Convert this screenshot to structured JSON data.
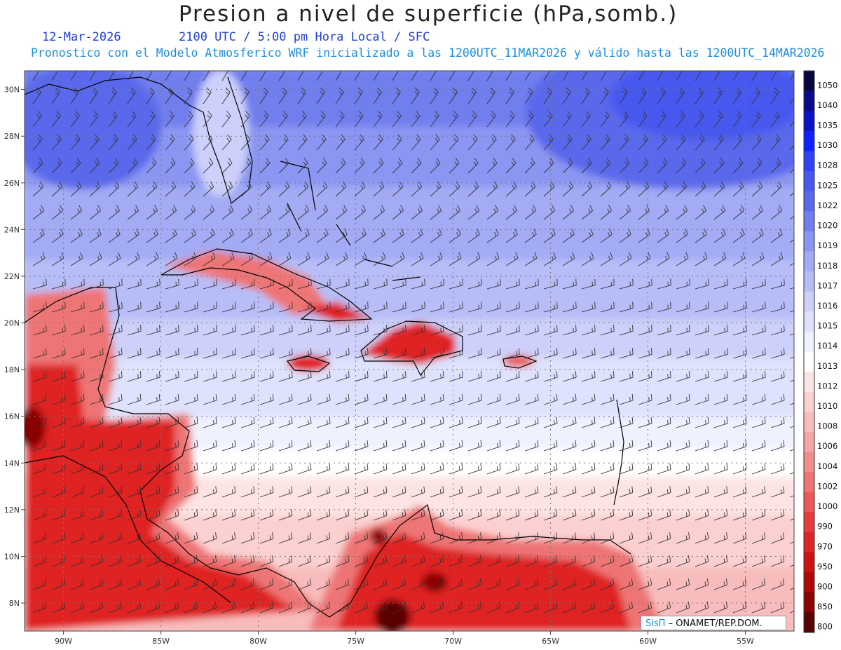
{
  "header": {
    "title": "Presion a nivel de superficie (hPa,somb.)",
    "date": "12-Mar-2026",
    "time": "2100 UTC / 5:00 pm Hora Local / SFC",
    "description": "Pronostico con el Modelo Atmosferico WRF inicializado a las 1200UTC_11MAR2026 y válido hasta las  1200UTC_14MAR2026"
  },
  "map": {
    "lon_range": [
      -92,
      -52.5
    ],
    "lat_range": [
      6.8,
      30.8
    ],
    "lon_ticks": [
      {
        "value": -90,
        "label": "90W"
      },
      {
        "value": -85,
        "label": "85W"
      },
      {
        "value": -80,
        "label": "80W"
      },
      {
        "value": -75,
        "label": "75W"
      },
      {
        "value": -70,
        "label": "70W"
      },
      {
        "value": -65,
        "label": "65W"
      },
      {
        "value": -60,
        "label": "60W"
      },
      {
        "value": -55,
        "label": "55W"
      }
    ],
    "lat_ticks": [
      {
        "value": 8,
        "label": "8N"
      },
      {
        "value": 10,
        "label": "10N"
      },
      {
        "value": 12,
        "label": "12N"
      },
      {
        "value": 14,
        "label": "14N"
      },
      {
        "value": 16,
        "label": "16N"
      },
      {
        "value": 18,
        "label": "18N"
      },
      {
        "value": 20,
        "label": "20N"
      },
      {
        "value": 22,
        "label": "22N"
      },
      {
        "value": 24,
        "label": "24N"
      },
      {
        "value": 26,
        "label": "26N"
      },
      {
        "value": 28,
        "label": "28N"
      },
      {
        "value": 30,
        "label": "30N"
      }
    ],
    "wind_barbs_shown": true,
    "grid": true
  },
  "colorbar": {
    "levels": [
      {
        "label": "1050",
        "color": "#07073f"
      },
      {
        "label": "1040",
        "color": "#0a0a8a"
      },
      {
        "label": "1035",
        "color": "#0c12c8"
      },
      {
        "label": "1030",
        "color": "#0d22ff"
      },
      {
        "label": "1028",
        "color": "#2d43f4"
      },
      {
        "label": "1025",
        "color": "#4658ee"
      },
      {
        "label": "1022",
        "color": "#5a69ec"
      },
      {
        "label": "1020",
        "color": "#717eee"
      },
      {
        "label": "1019",
        "color": "#8b95f2"
      },
      {
        "label": "1018",
        "color": "#a2abf4"
      },
      {
        "label": "1017",
        "color": "#b7bdf7"
      },
      {
        "label": "1016",
        "color": "#ccd0fa"
      },
      {
        "label": "1015",
        "color": "#dfe2fc"
      },
      {
        "label": "1014",
        "color": "#f0f1fe"
      },
      {
        "label": "1013",
        "color": "#ffffff"
      },
      {
        "label": "1012",
        "color": "#fde4e4"
      },
      {
        "label": "1010",
        "color": "#fbd0d0"
      },
      {
        "label": "1008",
        "color": "#f8bcbc"
      },
      {
        "label": "1006",
        "color": "#f5a6a6"
      },
      {
        "label": "1004",
        "color": "#f28e8e"
      },
      {
        "label": "1002",
        "color": "#ee7474"
      },
      {
        "label": "1000",
        "color": "#ea5858"
      },
      {
        "label": "990",
        "color": "#e53d3d"
      },
      {
        "label": "970",
        "color": "#df2424"
      },
      {
        "label": "950",
        "color": "#cf1111"
      },
      {
        "label": "900",
        "color": "#b00808"
      },
      {
        "label": "850",
        "color": "#8a0404"
      },
      {
        "label": "800",
        "color": "#5a0101"
      }
    ]
  },
  "credit": {
    "logo": "SisΠ",
    "text": "– ONAMET/REP.DOM."
  }
}
